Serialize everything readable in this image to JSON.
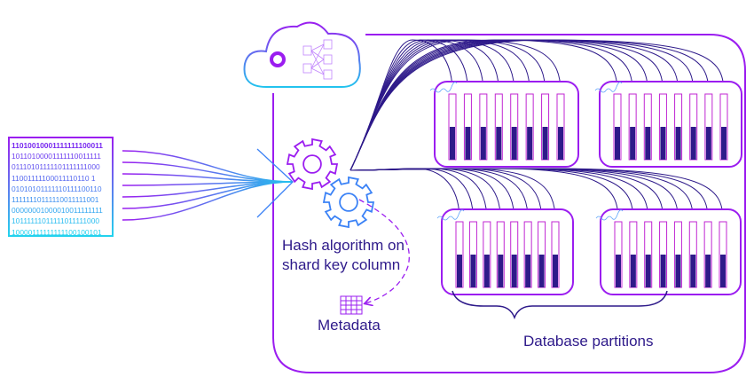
{
  "binary_rows": [
    "11010010001111111100011",
    "10110100001111110011111",
    "01110101111101111111000",
    "11001111100011110110 1",
    "01010101111110111100110",
    "11111110111110011111001",
    "00000001000010011111111",
    "10111111011111011111000",
    "10000111111111100100101"
  ],
  "labels": {
    "hash": "Hash algorithm on",
    "hash2": "shard key column",
    "metadata": "Metadata",
    "partitions": "Database partitions"
  },
  "colors": {
    "purple": "#9b1df0",
    "navy": "#2e1a8a",
    "cyan": "#22c3ee",
    "blue": "#3b82f6"
  },
  "icons": [
    "cloud-icon",
    "logo-icon",
    "network-icon",
    "gear-icon",
    "table-icon"
  ],
  "partition_count": 4,
  "columns_per_partition": 8,
  "column_fill_fraction": 0.5
}
